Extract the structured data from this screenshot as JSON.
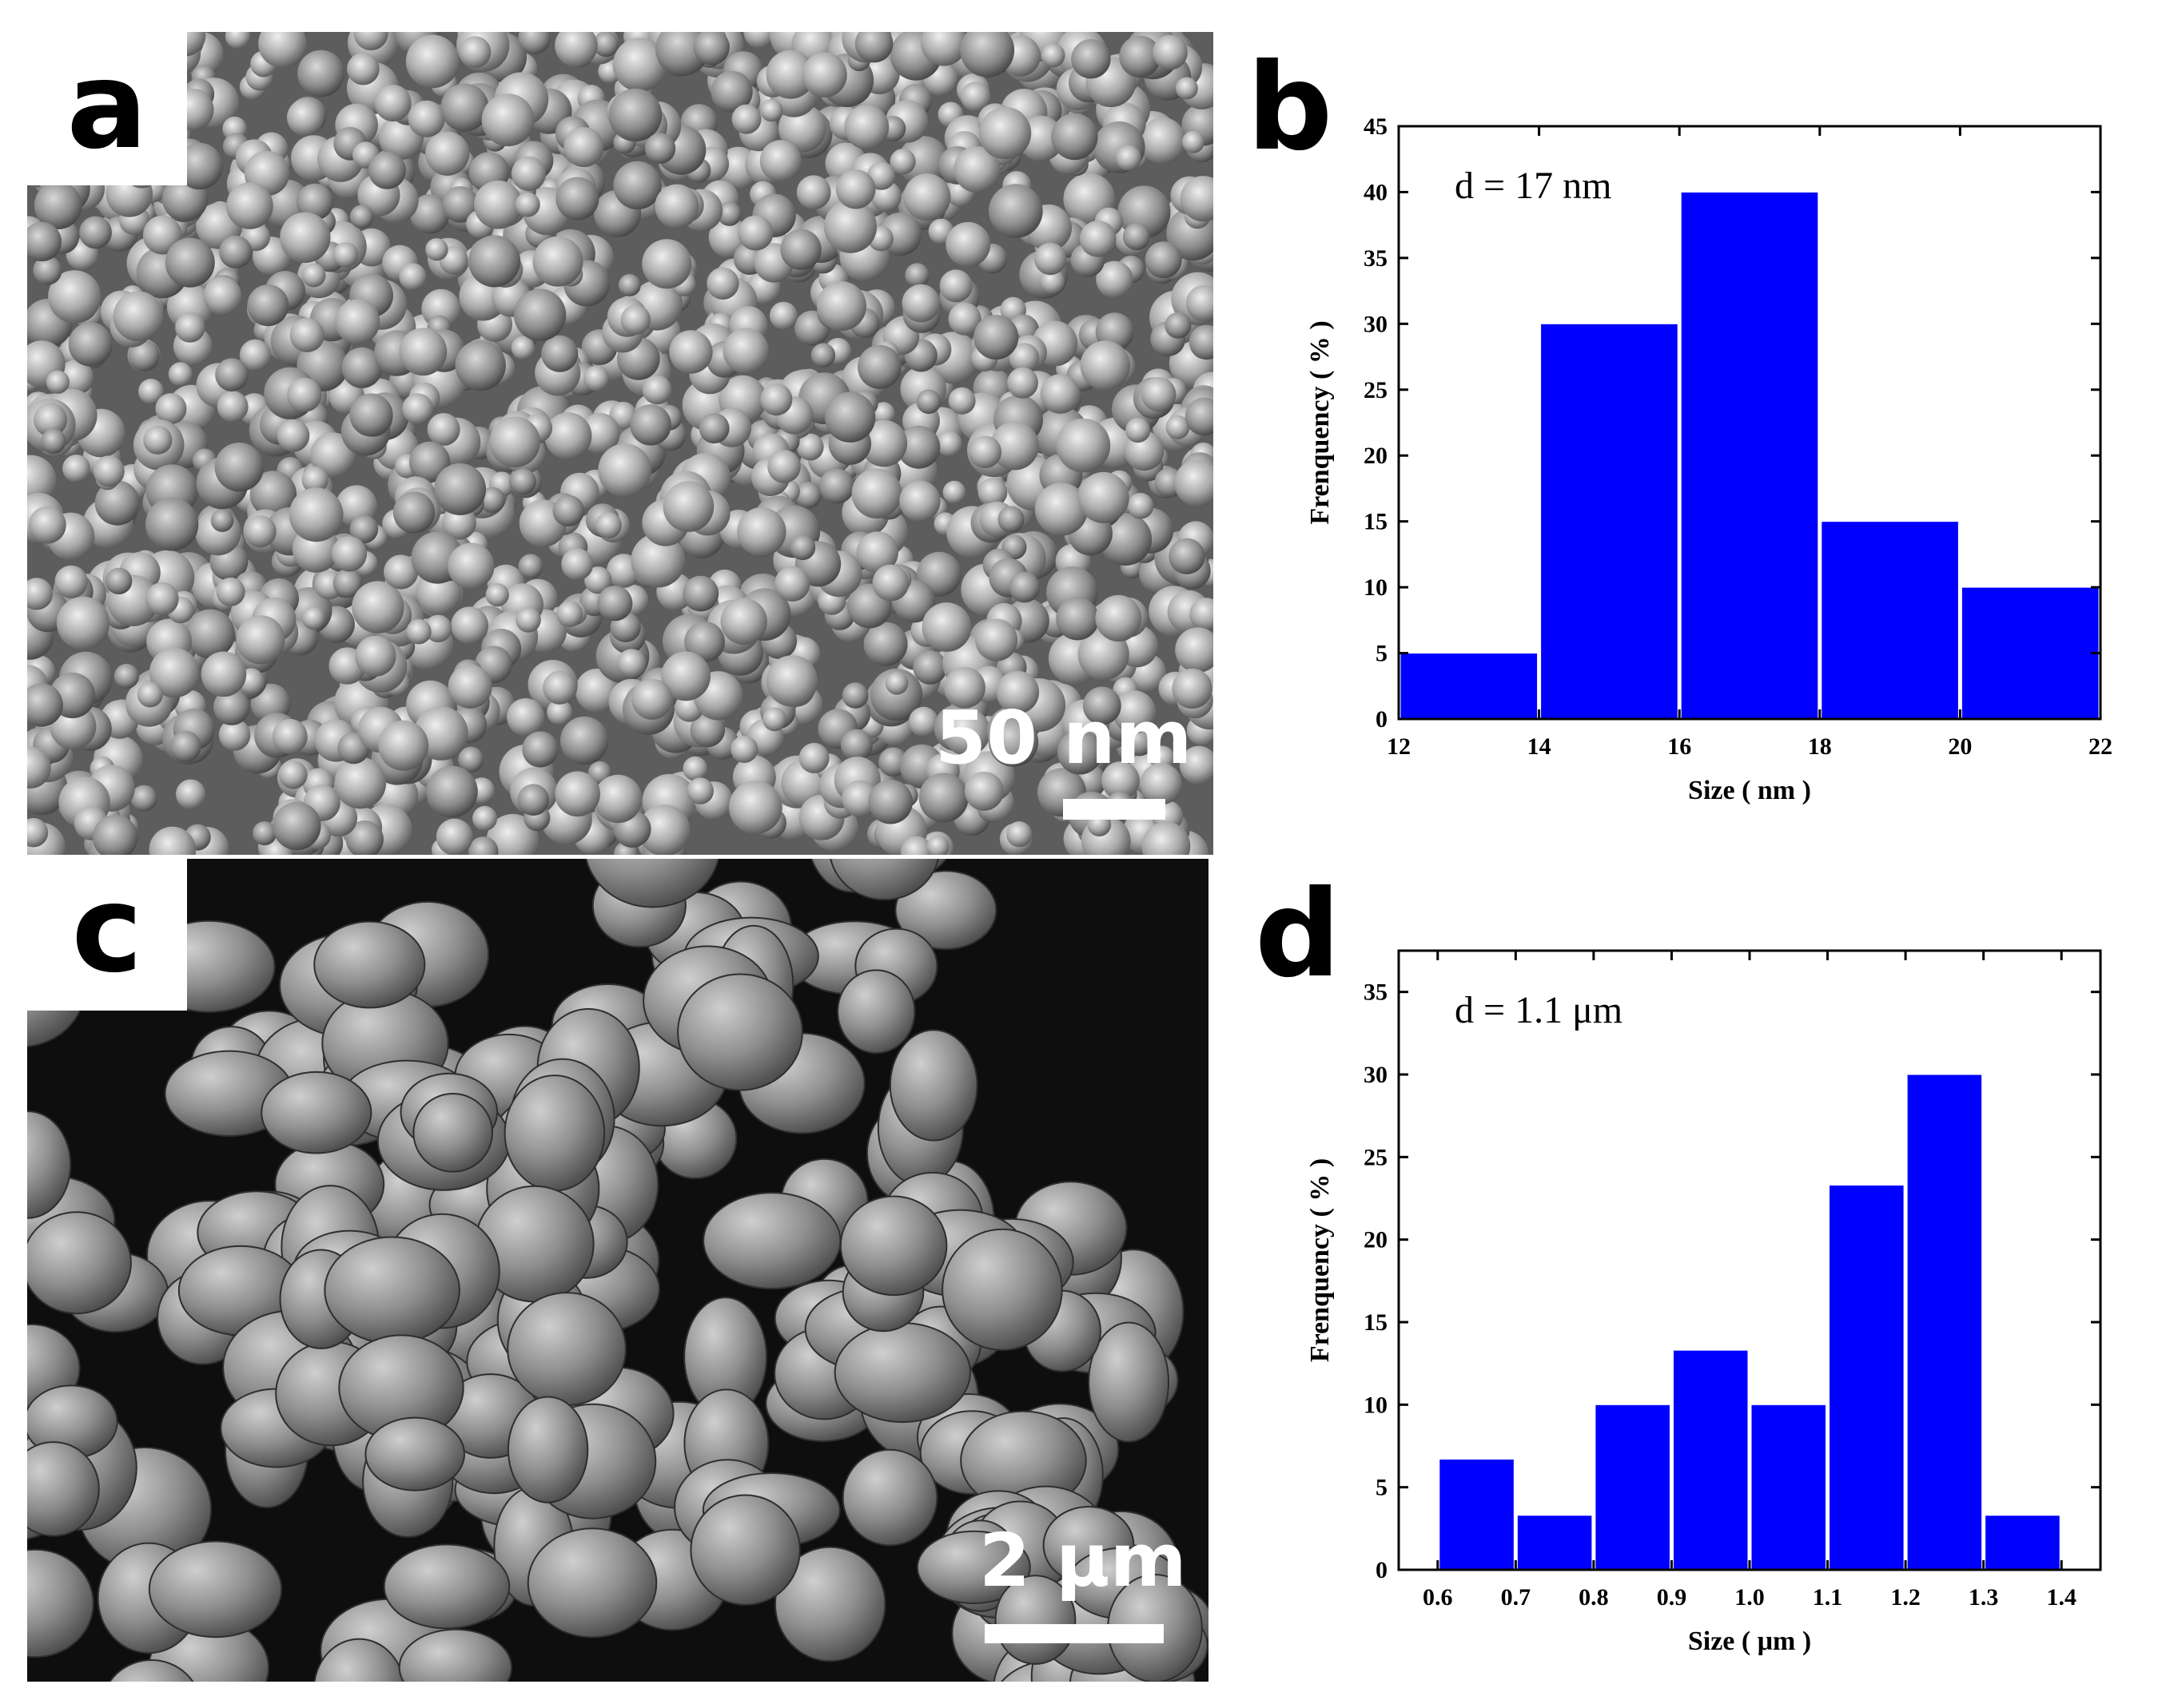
{
  "panels": {
    "a": {
      "label": "a",
      "scale_text": "50 nm"
    },
    "b": {
      "label": "b"
    },
    "c": {
      "label": "c",
      "scale_text": "2 µm"
    },
    "d": {
      "label": "d"
    }
  },
  "colors": {
    "bar_fill": "#0000ff",
    "bar_edge": "#ffffff",
    "axis": "#000000"
  },
  "chart_data": [
    {
      "panel": "b",
      "type": "bar",
      "annotation": "d = 17 nm",
      "xlabel": "Size ( nm )",
      "ylabel": "Frenquency ( % )",
      "xlim": [
        12,
        22
      ],
      "ylim": [
        0,
        45
      ],
      "xticks": [
        12,
        14,
        16,
        18,
        20,
        22
      ],
      "yticks": [
        0,
        5,
        10,
        15,
        20,
        25,
        30,
        35,
        40,
        45
      ],
      "bins": [
        {
          "from": 12,
          "to": 14,
          "value": 5
        },
        {
          "from": 14,
          "to": 16,
          "value": 30
        },
        {
          "from": 16,
          "to": 18,
          "value": 40
        },
        {
          "from": 18,
          "to": 20,
          "value": 15
        },
        {
          "from": 20,
          "to": 22,
          "value": 10
        }
      ],
      "grid": false,
      "legend": "none"
    },
    {
      "panel": "d",
      "type": "bar",
      "annotation": "d = 1.1 μm",
      "xlabel": "Size ( μm )",
      "ylabel": "Frenquency ( % )",
      "xlim": [
        0.55,
        1.45
      ],
      "ylim": [
        0,
        37.5
      ],
      "xticks": [
        "0.6",
        "0.7",
        "0.8",
        "0.9",
        "1.0",
        "1.1",
        "1.2",
        "1.3",
        "1.4"
      ],
      "yticks": [
        0,
        5,
        10,
        15,
        20,
        25,
        30,
        35
      ],
      "bins": [
        {
          "from": 0.6,
          "to": 0.7,
          "value": 6.7
        },
        {
          "from": 0.7,
          "to": 0.8,
          "value": 3.3
        },
        {
          "from": 0.8,
          "to": 0.9,
          "value": 10
        },
        {
          "from": 0.9,
          "to": 1.0,
          "value": 13.3
        },
        {
          "from": 1.0,
          "to": 1.1,
          "value": 10
        },
        {
          "from": 1.1,
          "to": 1.2,
          "value": 23.3
        },
        {
          "from": 1.2,
          "to": 1.3,
          "value": 30
        },
        {
          "from": 1.3,
          "to": 1.4,
          "value": 3.3
        }
      ],
      "grid": false,
      "legend": "none"
    }
  ]
}
